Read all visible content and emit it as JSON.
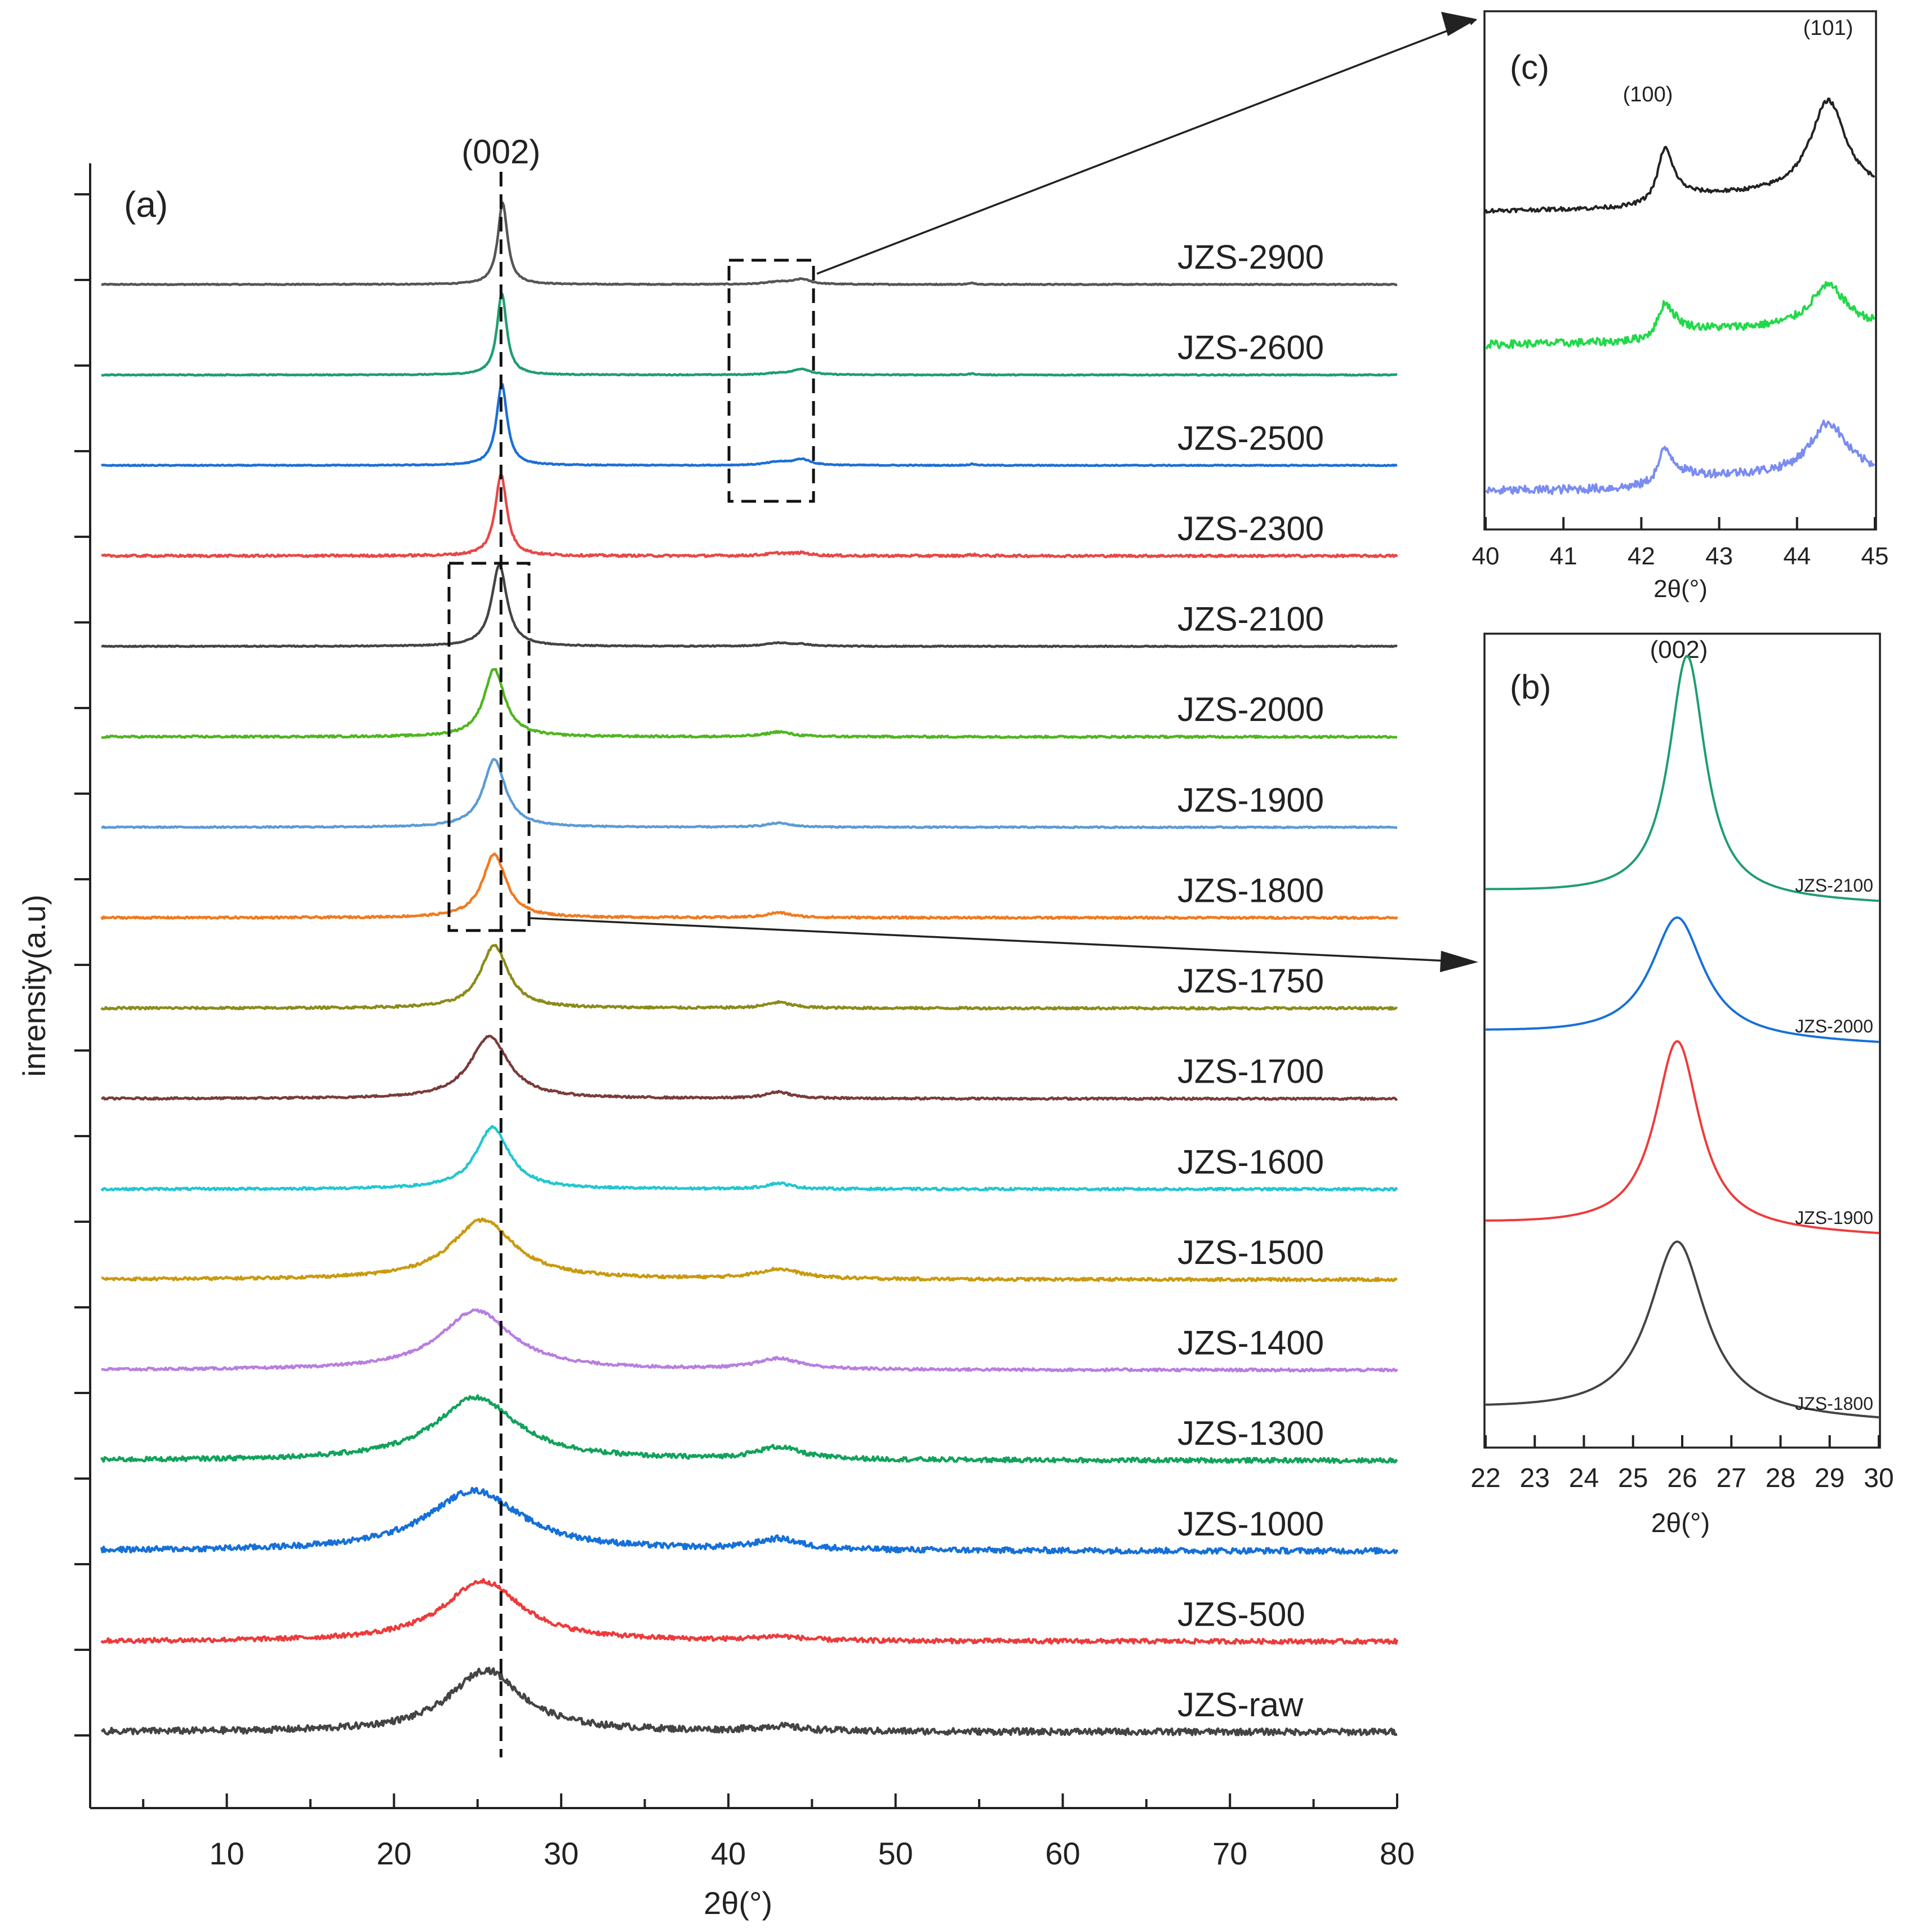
{
  "chart_data": [
    {
      "panel": "(a)",
      "type": "line",
      "xlabel": "2θ(°)",
      "ylabel": "inrensity(a.u)",
      "xlim": [
        2.5,
        80
      ],
      "xticks": [
        10,
        20,
        30,
        40,
        50,
        60,
        70,
        80
      ],
      "peak_label": "(002)",
      "peak_position": 26.4,
      "series": [
        {
          "name": "JZS-2900",
          "color": "#555555",
          "center": 26.5,
          "width": 0.35,
          "height": 1.0,
          "p100": 0.03,
          "p101": 0.06,
          "noise": 0.006
        },
        {
          "name": "JZS-2600",
          "color": "#1e9e6e",
          "center": 26.45,
          "width": 0.35,
          "height": 1.0,
          "p100": 0.02,
          "p101": 0.07,
          "noise": 0.006
        },
        {
          "name": "JZS-2500",
          "color": "#1b6fd6",
          "center": 26.45,
          "width": 0.38,
          "height": 1.0,
          "p100": 0.04,
          "p101": 0.07,
          "noise": 0.006
        },
        {
          "name": "JZS-2300",
          "color": "#e84747",
          "center": 26.4,
          "width": 0.42,
          "height": 1.0,
          "p100": 0.03,
          "p101": 0.03,
          "noise": 0.014
        },
        {
          "name": "JZS-2100",
          "color": "#444444",
          "center": 26.3,
          "width": 0.55,
          "height": 1.0,
          "p100": 0.04,
          "p101": 0.02,
          "noise": 0.006
        },
        {
          "name": "JZS-2000",
          "color": "#4fb520",
          "center": 26.0,
          "width": 0.75,
          "height": 0.83,
          "p100": 0.06,
          "p101": 0.0,
          "noise": 0.012
        },
        {
          "name": "JZS-1900",
          "color": "#5b9bd5",
          "center": 26.0,
          "width": 0.8,
          "height": 0.83,
          "p100": 0.05,
          "p101": 0.0,
          "noise": 0.008
        },
        {
          "name": "JZS-1800",
          "color": "#f07a20",
          "center": 26.0,
          "width": 0.85,
          "height": 0.78,
          "p100": 0.06,
          "p101": 0.0,
          "noise": 0.012
        },
        {
          "name": "JZS-1750",
          "color": "#8b8b1a",
          "center": 26.0,
          "width": 1.0,
          "height": 0.77,
          "p100": 0.07,
          "p101": 0.0,
          "noise": 0.014
        },
        {
          "name": "JZS-1700",
          "color": "#7a3b3b",
          "center": 25.7,
          "width": 1.4,
          "height": 0.76,
          "p100": 0.08,
          "p101": 0.0,
          "noise": 0.012
        },
        {
          "name": "JZS-1600",
          "color": "#22c6d2",
          "center": 25.9,
          "width": 1.2,
          "height": 0.76,
          "p100": 0.07,
          "p101": 0.0,
          "noise": 0.014
        },
        {
          "name": "JZS-1500",
          "color": "#c99a10",
          "center": 25.3,
          "width": 2.3,
          "height": 0.73,
          "p100": 0.12,
          "p101": 0.0,
          "noise": 0.018
        },
        {
          "name": "JZS-1400",
          "color": "#b87ee0",
          "center": 24.9,
          "width": 2.6,
          "height": 0.73,
          "p100": 0.13,
          "p101": 0.0,
          "noise": 0.016
        },
        {
          "name": "JZS-1300",
          "color": "#12a25b",
          "center": 24.9,
          "width": 3.0,
          "height": 0.77,
          "p100": 0.15,
          "p101": 0.0,
          "noise": 0.028
        },
        {
          "name": "JZS-1000",
          "color": "#1670d8",
          "center": 24.8,
          "width": 3.4,
          "height": 0.74,
          "p100": 0.13,
          "p101": 0.0,
          "noise": 0.035
        },
        {
          "name": "JZS-500",
          "color": "#ec3b3b",
          "center": 25.3,
          "width": 2.8,
          "height": 0.74,
          "p100": 0.05,
          "p101": 0.0,
          "noise": 0.028
        },
        {
          "name": "JZS-raw",
          "color": "#444444",
          "center": 25.5,
          "width": 2.6,
          "height": 0.76,
          "p100": 0.06,
          "p101": 0.0,
          "noise": 0.04
        }
      ]
    },
    {
      "panel": "(b)",
      "type": "line",
      "xlabel": "2θ(°)",
      "xlim": [
        22,
        30
      ],
      "xticks": [
        22,
        23,
        24,
        25,
        26,
        27,
        28,
        29,
        30
      ],
      "peak_label": "(002)",
      "series": [
        {
          "name": "JZS-2100",
          "color": "#1e9e6e",
          "center": 26.1,
          "width": 0.45,
          "height": 1.0
        },
        {
          "name": "JZS-2000",
          "color": "#1670d8",
          "center": 25.9,
          "width": 0.65,
          "height": 0.5
        },
        {
          "name": "JZS-1900",
          "color": "#ee3b3b",
          "center": 25.9,
          "width": 0.55,
          "height": 0.78
        },
        {
          "name": "JZS-1800",
          "color": "#444444",
          "center": 25.9,
          "width": 0.7,
          "height": 0.72
        }
      ]
    },
    {
      "panel": "(c)",
      "type": "line",
      "xlabel": "2θ(°)",
      "xlim": [
        40,
        45
      ],
      "xticks": [
        40,
        41,
        42,
        43,
        44,
        45
      ],
      "peak_labels": [
        "(100)",
        "(101)"
      ],
      "peak_positions": [
        42.3,
        44.4
      ],
      "series": [
        {
          "color": "#222222",
          "h100": 1.0,
          "h101": 1.0,
          "noise": 0.02
        },
        {
          "color": "#22d84a",
          "h100": 0.62,
          "h101": 0.45,
          "noise": 0.04
        },
        {
          "color": "#7a8cf0",
          "h100": 0.62,
          "h101": 0.55,
          "noise": 0.045
        }
      ]
    }
  ]
}
